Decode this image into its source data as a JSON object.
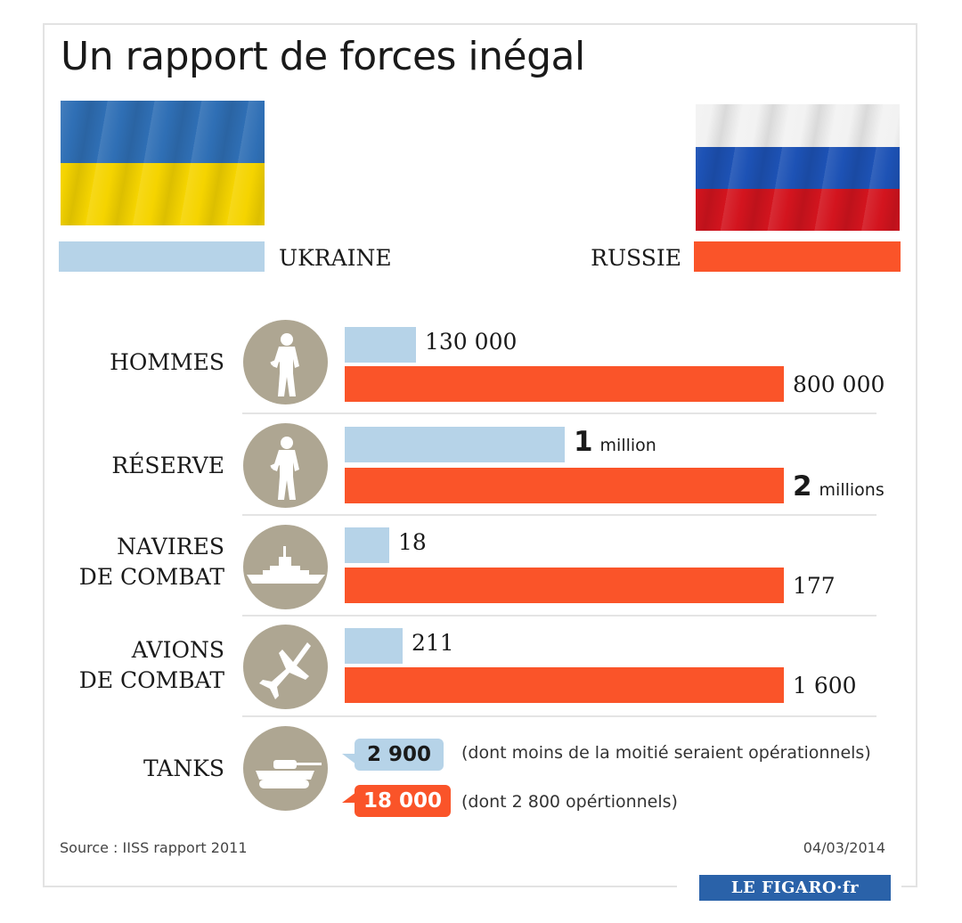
{
  "title": "Un rapport de forces inégal",
  "legend": {
    "ukraine": "UKRAINE",
    "russie": "RUSSIE"
  },
  "colors": {
    "ukraine": "#b6d3e8",
    "russie": "#fa5429",
    "icon_bg": "#aea692",
    "logo_bg": "#2a62a9"
  },
  "categories": [
    {
      "label_lines": [
        "HOMMES"
      ],
      "icon": "soldier-icon",
      "ukraine_label": "130 000",
      "russie_label": "800 000"
    },
    {
      "label_lines": [
        "RÉSERVE"
      ],
      "icon": "soldier-icon",
      "ukraine_num": "1",
      "ukraine_unit": "million",
      "russie_num": "2",
      "russie_unit": "millions"
    },
    {
      "label_lines": [
        "NAVIRES",
        "DE COMBAT"
      ],
      "icon": "warship-icon",
      "ukraine_label": "18",
      "russie_label": "177"
    },
    {
      "label_lines": [
        "AVIONS",
        "DE COMBAT"
      ],
      "icon": "fighter-jet-icon",
      "ukraine_label": "211",
      "russie_label": "1 600"
    },
    {
      "label_lines": [
        "TANKS"
      ],
      "icon": "tank-icon",
      "ukraine_label": "2 900",
      "russie_label": "18 000",
      "ukraine_note": "(dont moins de la moitié seraient opérationnels)",
      "russie_note": "(dont 2 800 opértionnels)"
    }
  ],
  "chart_data": {
    "type": "bar",
    "orientation": "horizontal",
    "title": "Un rapport de forces inégal",
    "categories": [
      "HOMMES",
      "RÉSERVE",
      "NAVIRES DE COMBAT",
      "AVIONS DE COMBAT",
      "TANKS"
    ],
    "series": [
      {
        "name": "UKRAINE",
        "values": [
          130000,
          1000000,
          18,
          211,
          2900
        ]
      },
      {
        "name": "RUSSIE",
        "values": [
          800000,
          2000000,
          177,
          1600,
          18000
        ]
      }
    ],
    "scale_note": "each category uses its own scale relative to the larger value; TANKS shown as labels only"
  },
  "footer": {
    "source": "Source : IISS rapport 2011",
    "date": "04/03/2014",
    "logo": "LE FIGARO·fr"
  }
}
